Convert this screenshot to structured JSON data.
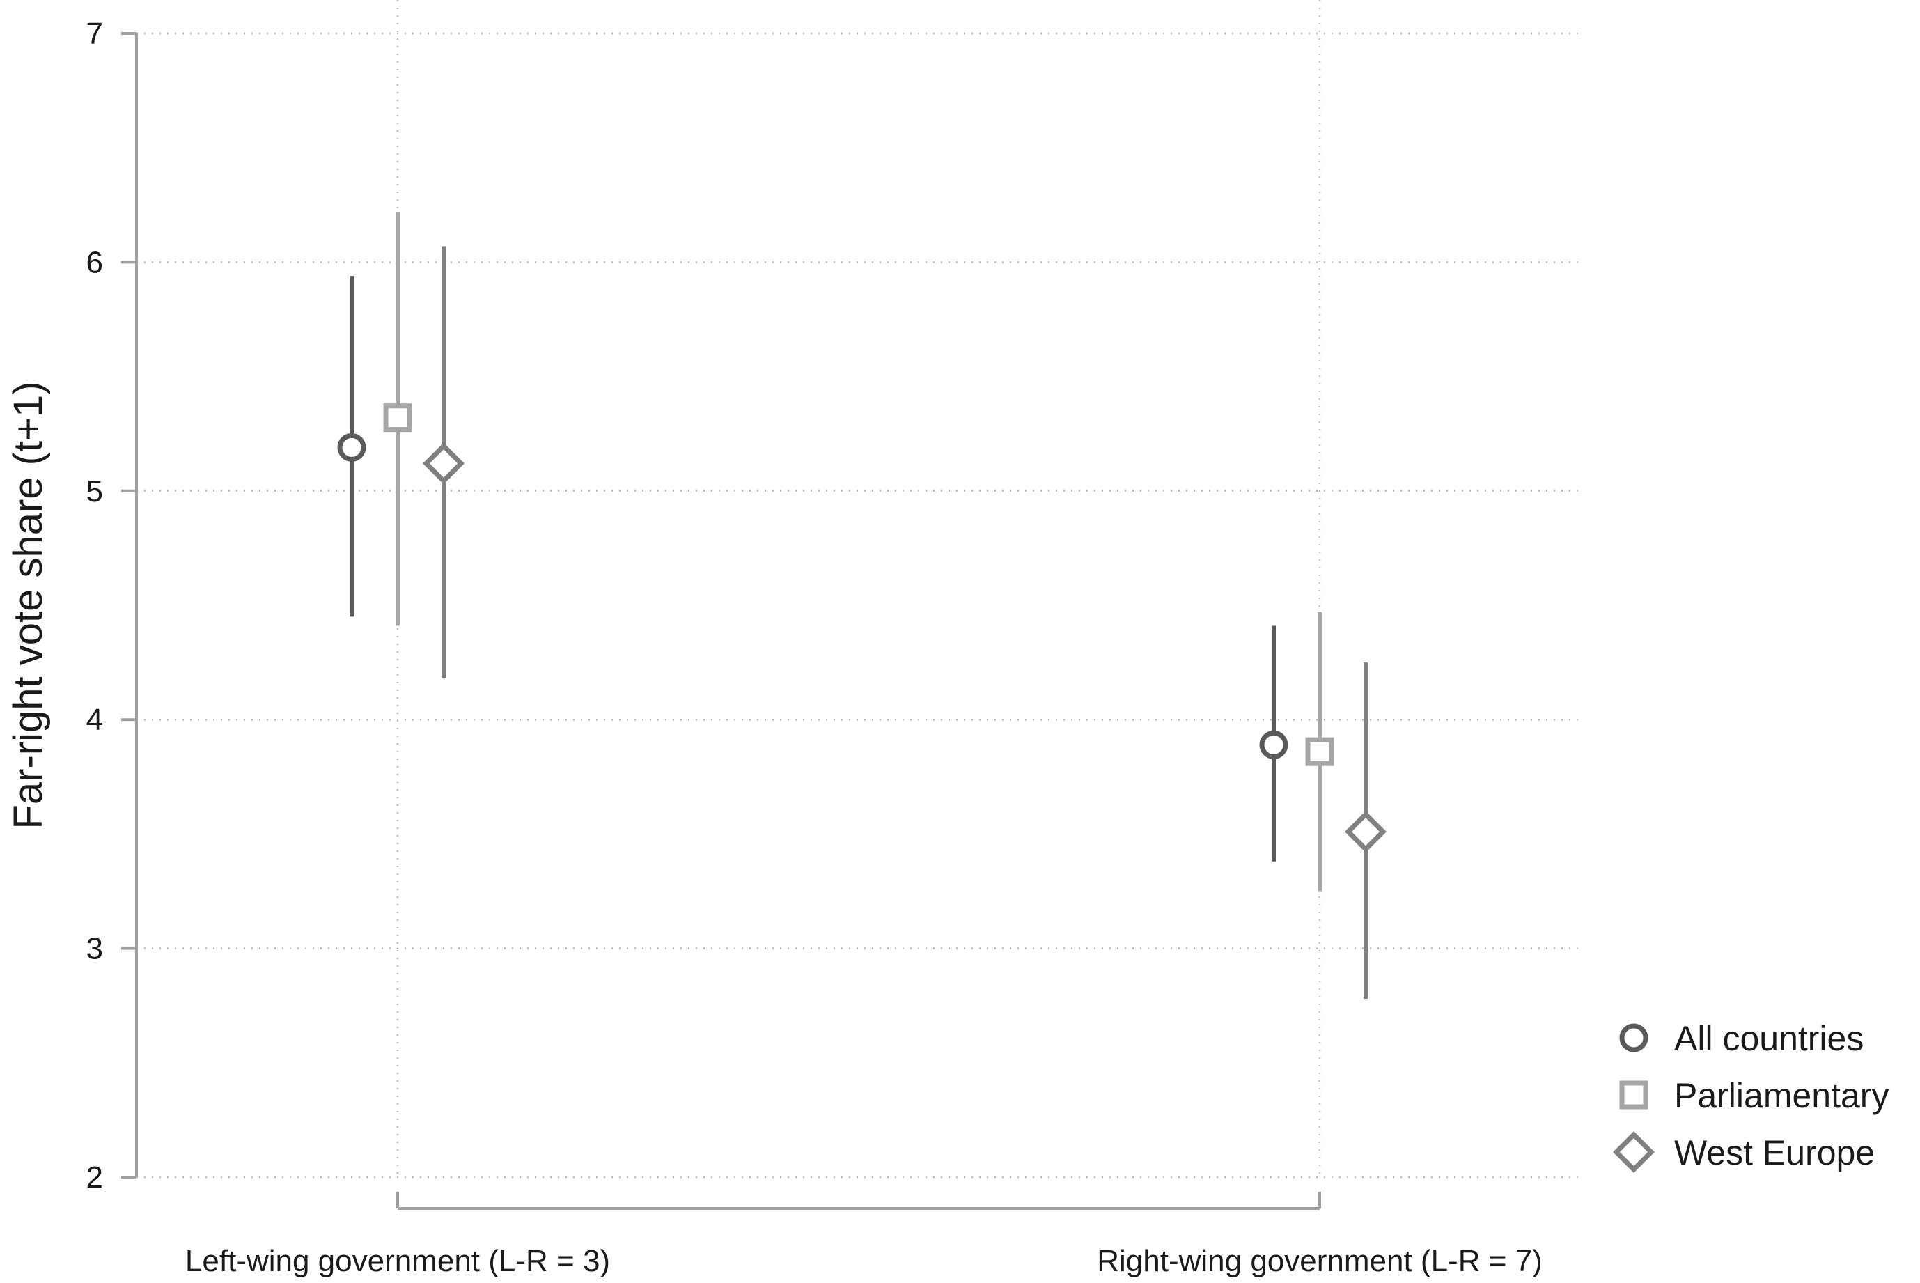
{
  "chart_data": {
    "type": "scatter",
    "title": "",
    "xlabel": "",
    "ylabel": "Far-right vote share (t+1)",
    "ylim": [
      2,
      7
    ],
    "yticks": [
      2,
      3,
      4,
      5,
      6,
      7
    ],
    "grid": true,
    "legend_position": "bottom-right",
    "categories": [
      "Left-wing government (L-R = 3)",
      "Right-wing government (L-R = 7)"
    ],
    "series": [
      {
        "name": "All countries",
        "marker": "circle",
        "color": "#5a5a5a",
        "points": [
          {
            "category": "Left-wing government (L-R = 3)",
            "y": 5.19,
            "lower": 4.45,
            "upper": 5.94
          },
          {
            "category": "Right-wing government (L-R = 7)",
            "y": 3.89,
            "lower": 3.38,
            "upper": 4.41
          }
        ]
      },
      {
        "name": "Parliamentary",
        "marker": "square",
        "color": "#a6a6a6",
        "points": [
          {
            "category": "Left-wing government (L-R = 3)",
            "y": 5.32,
            "lower": 4.41,
            "upper": 6.22
          },
          {
            "category": "Right-wing government (L-R = 7)",
            "y": 3.86,
            "lower": 3.25,
            "upper": 4.47
          }
        ]
      },
      {
        "name": "West Europe",
        "marker": "diamond",
        "color": "#808080",
        "points": [
          {
            "category": "Left-wing government (L-R = 3)",
            "y": 5.12,
            "lower": 4.18,
            "upper": 6.07
          },
          {
            "category": "Right-wing government (L-R = 7)",
            "y": 3.51,
            "lower": 2.78,
            "upper": 4.25
          }
        ]
      }
    ]
  }
}
